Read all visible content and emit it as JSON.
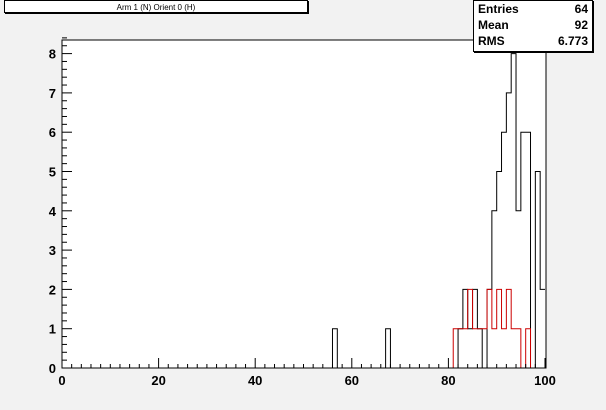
{
  "title": "Arm 1 (N) Orient 0 (H)",
  "stats": [
    {
      "label": "Entries",
      "value": "64"
    },
    {
      "label": "Mean",
      "value": "92"
    },
    {
      "label": "RMS",
      "value": "6.773"
    }
  ],
  "colors": {
    "background": "#f2f2f2",
    "frame": "#ffffff",
    "black_series": "#000000",
    "red_series": "#cc0000"
  },
  "chart_data": {
    "type": "histogram",
    "title": "Arm 1 (N) Orient 0 (H)",
    "xlabel": "",
    "ylabel": "",
    "xlim": [
      0,
      100
    ],
    "ylim": [
      0,
      8.4
    ],
    "x_ticks": [
      0,
      20,
      40,
      60,
      80,
      100
    ],
    "y_ticks": [
      0,
      1,
      2,
      3,
      4,
      5,
      6,
      7,
      8
    ],
    "grid": false,
    "bin_width": 1,
    "series": [
      {
        "color": "#000000",
        "bins": [
          {
            "x": 56,
            "y": 1
          },
          {
            "x": 67,
            "y": 1
          },
          {
            "x": 82,
            "y": 1
          },
          {
            "x": 83,
            "y": 2
          },
          {
            "x": 84,
            "y": 1
          },
          {
            "x": 85,
            "y": 2
          },
          {
            "x": 86,
            "y": 1
          },
          {
            "x": 87,
            "y": 0
          },
          {
            "x": 88,
            "y": 2
          },
          {
            "x": 89,
            "y": 4
          },
          {
            "x": 90,
            "y": 5
          },
          {
            "x": 91,
            "y": 6
          },
          {
            "x": 92,
            "y": 7
          },
          {
            "x": 93,
            "y": 8
          },
          {
            "x": 94,
            "y": 4
          },
          {
            "x": 95,
            "y": 6
          },
          {
            "x": 96,
            "y": 6
          },
          {
            "x": 97,
            "y": 0
          },
          {
            "x": 98,
            "y": 5
          },
          {
            "x": 99,
            "y": 2
          }
        ]
      },
      {
        "color": "#cc0000",
        "bins": [
          {
            "x": 81,
            "y": 1
          },
          {
            "x": 82,
            "y": 1
          },
          {
            "x": 83,
            "y": 1
          },
          {
            "x": 84,
            "y": 2
          },
          {
            "x": 85,
            "y": 1
          },
          {
            "x": 86,
            "y": 1
          },
          {
            "x": 87,
            "y": 1
          },
          {
            "x": 88,
            "y": 2
          },
          {
            "x": 89,
            "y": 1
          },
          {
            "x": 90,
            "y": 2
          },
          {
            "x": 91,
            "y": 1
          },
          {
            "x": 92,
            "y": 2
          },
          {
            "x": 93,
            "y": 1
          },
          {
            "x": 94,
            "y": 1
          },
          {
            "x": 95,
            "y": 0
          },
          {
            "x": 96,
            "y": 1
          }
        ]
      }
    ]
  }
}
